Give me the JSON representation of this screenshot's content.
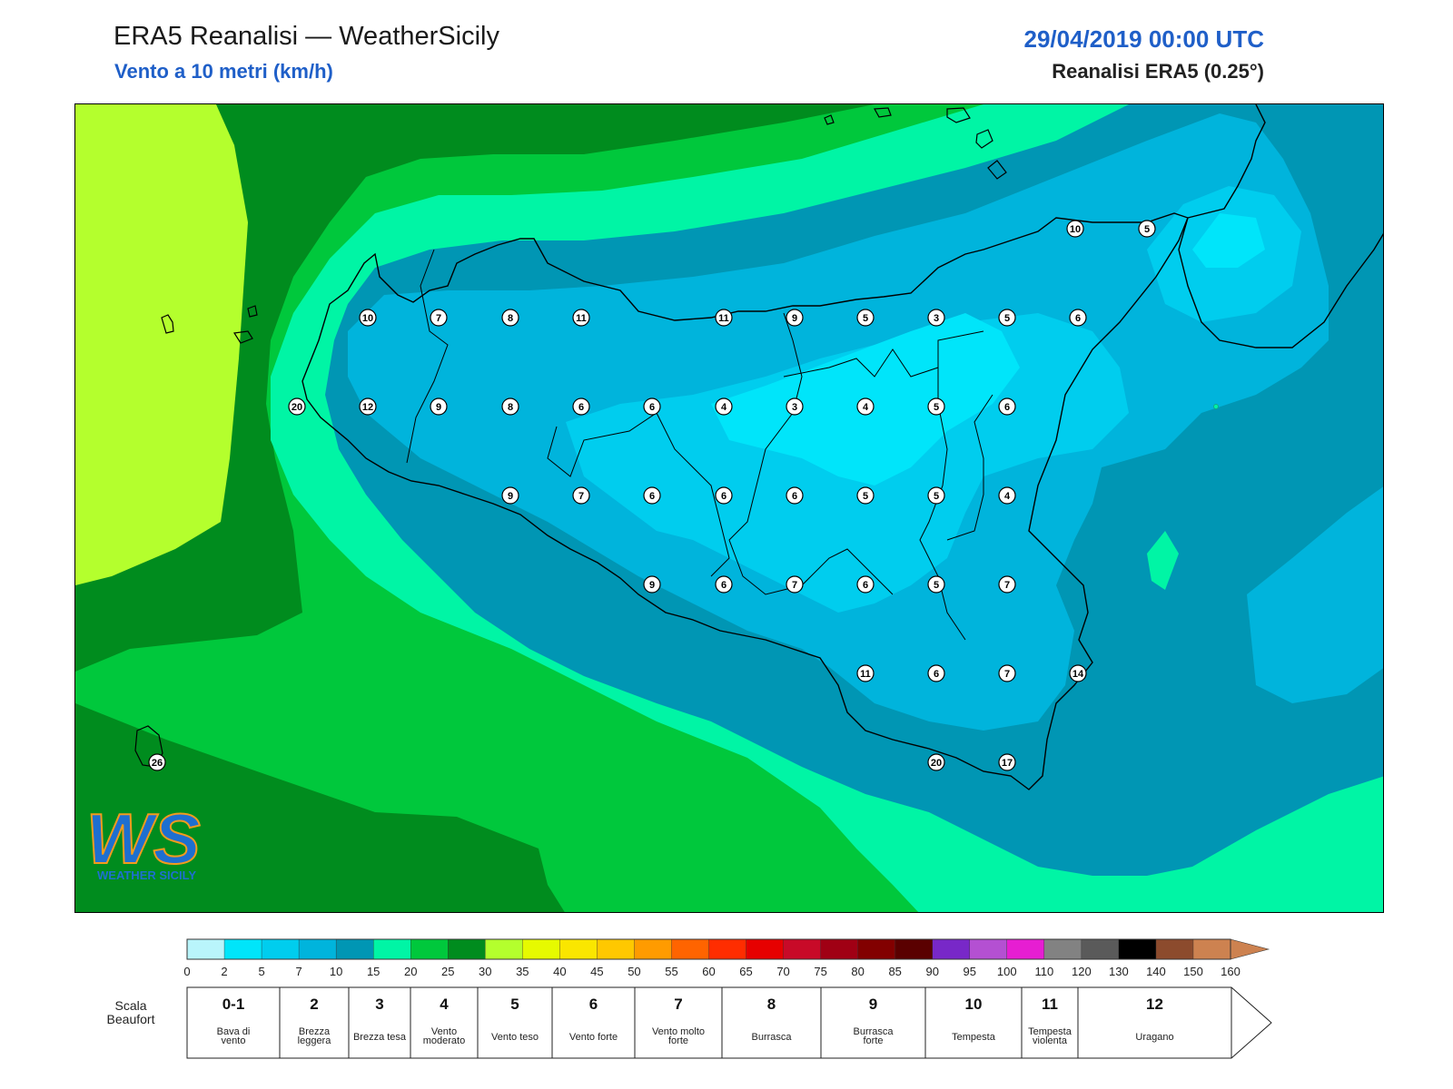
{
  "header": {
    "title": "ERA5 Reanalisi — WeatherSicily",
    "subtitle": "Vento a 10 metri (km/h)",
    "datetime": "29/04/2019 00:00 UTC",
    "source": "Reanalisi ERA5 (0.25°)"
  },
  "logo": {
    "letters": "WS",
    "text": "WEATHER SICILY"
  },
  "station_values": [
    {
      "v": "10"
    },
    {
      "v": "5"
    },
    {
      "v": "10"
    },
    {
      "v": "7"
    },
    {
      "v": "8"
    },
    {
      "v": "11"
    },
    {
      "v": "11"
    },
    {
      "v": "9"
    },
    {
      "v": "5"
    },
    {
      "v": "3"
    },
    {
      "v": "5"
    },
    {
      "v": "6"
    },
    {
      "v": "20"
    },
    {
      "v": "12"
    },
    {
      "v": "9"
    },
    {
      "v": "8"
    },
    {
      "v": "6"
    },
    {
      "v": "6"
    },
    {
      "v": "4"
    },
    {
      "v": "3"
    },
    {
      "v": "4"
    },
    {
      "v": "5"
    },
    {
      "v": "6"
    },
    {
      "v": "9"
    },
    {
      "v": "7"
    },
    {
      "v": "6"
    },
    {
      "v": "6"
    },
    {
      "v": "6"
    },
    {
      "v": "5"
    },
    {
      "v": "5"
    },
    {
      "v": "4"
    },
    {
      "v": "9"
    },
    {
      "v": "6"
    },
    {
      "v": "7"
    },
    {
      "v": "6"
    },
    {
      "v": "5"
    },
    {
      "v": "7"
    },
    {
      "v": "11"
    },
    {
      "v": "6"
    },
    {
      "v": "7"
    },
    {
      "v": "14"
    },
    {
      "v": "20"
    },
    {
      "v": "17"
    },
    {
      "v": "26"
    }
  ],
  "colorbar": {
    "ticks": [
      "0",
      "2",
      "5",
      "7",
      "10",
      "15",
      "20",
      "25",
      "30",
      "35",
      "40",
      "45",
      "50",
      "55",
      "60",
      "65",
      "70",
      "75",
      "80",
      "85",
      "90",
      "95",
      "100",
      "110",
      "120",
      "130",
      "140",
      "150",
      "160"
    ],
    "colors": [
      "#b9f5fb",
      "#00e5fa",
      "#00cdee",
      "#00b4dc",
      "#0096b4",
      "#00f5a5",
      "#00c83c",
      "#008c1e",
      "#b4ff2d",
      "#e6fa00",
      "#fae600",
      "#ffc800",
      "#ff9b00",
      "#ff6400",
      "#ff2d00",
      "#e60000",
      "#c80a28",
      "#a00014",
      "#820000",
      "#5a0000",
      "#7828c8",
      "#b450d2",
      "#e61ed2",
      "#828282",
      "#5a5a5a",
      "#000000",
      "#8c4b2d",
      "#cd8250"
    ]
  },
  "beaufort": {
    "title": "Scala Beaufort",
    "scale": [
      {
        "force": "0-1",
        "desc": "Bava di vento"
      },
      {
        "force": "2",
        "desc": "Brezza leggera"
      },
      {
        "force": "3",
        "desc": "Brezza tesa"
      },
      {
        "force": "4",
        "desc": "Vento moderato"
      },
      {
        "force": "5",
        "desc": "Vento teso"
      },
      {
        "force": "6",
        "desc": "Vento forte"
      },
      {
        "force": "7",
        "desc": "Vento molto forte"
      },
      {
        "force": "8",
        "desc": "Burrasca"
      },
      {
        "force": "9",
        "desc": "Burrasca forte"
      },
      {
        "force": "10",
        "desc": "Tempesta"
      },
      {
        "force": "11",
        "desc": "Tempesta violenta"
      },
      {
        "force": "12",
        "desc": "Uragano"
      }
    ]
  }
}
